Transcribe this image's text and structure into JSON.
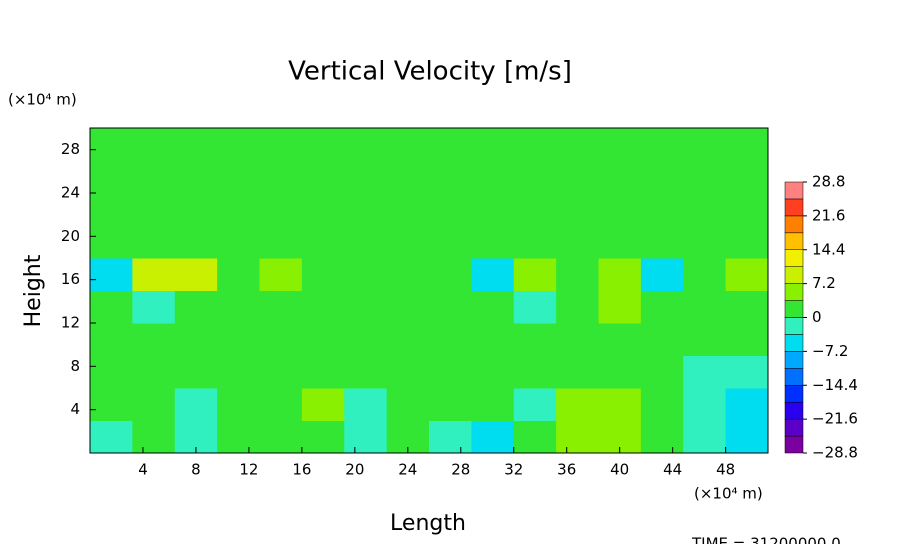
{
  "chart_data": {
    "type": "heatmap",
    "title": "Vertical Velocity [m/s]",
    "x_label": "Length",
    "y_label": "Height",
    "x_unit": "(×10⁴ m)",
    "y_unit": "(×10⁴ m)",
    "footer": "TIME = 31200000.0",
    "xlim": [
      0,
      51.2
    ],
    "ylim": [
      0,
      30
    ],
    "xticks": [
      4,
      8,
      12,
      16,
      20,
      24,
      28,
      32,
      36,
      40,
      44,
      48
    ],
    "yticks": [
      4,
      8,
      12,
      16,
      20,
      24,
      28
    ],
    "x": [
      1.6,
      4.8,
      8,
      11.2,
      14.4,
      17.6,
      20.8,
      24,
      27.2,
      30.4,
      33.6,
      36.8,
      40,
      43.2,
      46.4,
      49.6
    ],
    "y": [
      1.5,
      4.5,
      7.5,
      10.5,
      13.5,
      16.5,
      19.5,
      22.5,
      25.5,
      28.5
    ],
    "z": [
      [
        -2,
        1,
        -3,
        1,
        3,
        1,
        -2,
        1,
        -3,
        -4,
        1,
        4,
        4,
        1,
        -3,
        -4
      ],
      [
        1,
        3,
        -2,
        1,
        1,
        4,
        -2,
        1,
        1,
        3,
        -2,
        4,
        5,
        3,
        -2,
        -4
      ],
      [
        1,
        2,
        1,
        1,
        1,
        2,
        1,
        1,
        1,
        2,
        1,
        2,
        2,
        1,
        -2,
        -2
      ],
      [
        1,
        1,
        2,
        1,
        1,
        1,
        1,
        2,
        1,
        1,
        1,
        1,
        2,
        1,
        1,
        1
      ],
      [
        2,
        -3,
        2,
        3,
        1,
        2,
        1,
        3,
        1,
        2,
        -3,
        3,
        4,
        1,
        1,
        2
      ],
      [
        -4,
        8,
        8,
        2,
        5,
        1,
        1,
        2,
        2,
        -4,
        6,
        3,
        5,
        -4,
        2,
        6
      ],
      [
        1,
        1,
        1,
        3,
        1,
        1,
        1,
        1,
        1,
        1,
        1,
        1,
        1,
        1,
        1,
        1
      ],
      [
        1,
        1,
        1,
        1,
        1,
        1,
        1,
        1,
        1,
        1,
        1,
        1,
        1,
        1,
        1,
        1
      ],
      [
        1,
        1,
        1,
        1,
        1,
        1,
        1,
        1,
        1,
        1,
        1,
        1,
        1,
        1,
        1,
        1
      ],
      [
        1,
        1,
        1,
        1,
        1,
        1,
        1,
        1,
        1,
        1,
        1,
        1,
        1,
        1,
        1,
        1
      ]
    ],
    "clim": [
      -28.8,
      28.8
    ],
    "colors": [
      "#7a00a0",
      "#5a00c8",
      "#2a00f0",
      "#0030ff",
      "#0070ff",
      "#00a8ff",
      "#00dcf0",
      "#30f0c0",
      "#33e633",
      "#88f000",
      "#c8f000",
      "#f0f000",
      "#ffc000",
      "#ff8000",
      "#ff4020",
      "#ff8080"
    ],
    "cticks": [
      {
        "value": 28.8,
        "label": "28.8"
      },
      {
        "value": 21.6,
        "label": "21.6"
      },
      {
        "value": 14.4,
        "label": "14.4"
      },
      {
        "value": 7.2,
        "label": "7.2"
      },
      0,
      {
        "value": -7.2,
        "label": "−7.2"
      },
      {
        "value": -14.4,
        "label": "−14.4"
      },
      {
        "value": -21.6,
        "label": "−21.6"
      },
      {
        "value": -28.8,
        "label": "−28.8"
      }
    ]
  }
}
